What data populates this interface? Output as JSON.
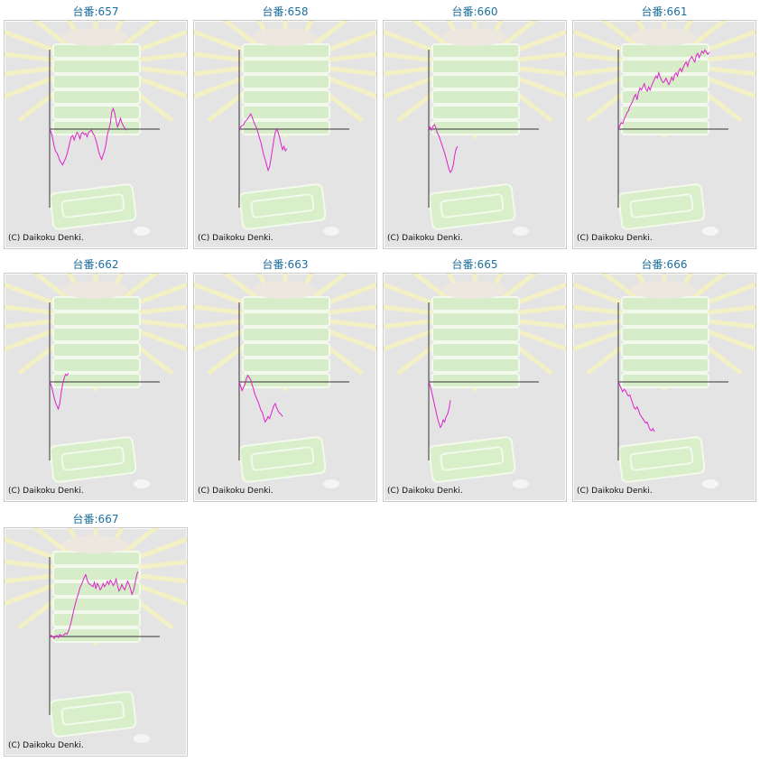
{
  "page": {
    "title_prefix": "台番:",
    "copyright": "(C) Daikoku Denki."
  },
  "colors": {
    "line": "#dd22cc",
    "title": "#1d6fa0",
    "panel_bg": "#e4e4e4",
    "axis": "#333333"
  },
  "chart_data": [
    {
      "type": "line",
      "title": "台番:657",
      "machine": "657",
      "y": [
        0,
        -3,
        -8,
        -15,
        -20,
        -22,
        -25,
        -29,
        -31,
        -33,
        -30,
        -27,
        -23,
        -18,
        -12,
        -7,
        -6,
        -10,
        -6,
        -3,
        -5,
        -9,
        -4,
        -3,
        -5,
        -4,
        -7,
        -3,
        -2,
        -1,
        -4,
        -6,
        -10,
        -15,
        -21,
        -25,
        -28,
        -24,
        -20,
        -14,
        -5,
        0,
        5,
        16,
        19,
        15,
        8,
        2,
        5,
        10,
        6,
        3,
        1,
        -1
      ]
    },
    {
      "type": "line",
      "title": "台番:658",
      "machine": "658",
      "y": [
        0,
        2,
        3,
        4,
        7,
        8,
        10,
        12,
        14,
        11,
        7,
        4,
        1,
        -3,
        -8,
        -12,
        -18,
        -24,
        -28,
        -33,
        -38,
        -35,
        -27,
        -19,
        -10,
        -3,
        0,
        -3,
        -8,
        -14,
        -19,
        -16,
        -20,
        -18
      ]
    },
    {
      "type": "line",
      "title": "台番:660",
      "machine": "660",
      "y": [
        0,
        2,
        -1,
        3,
        4,
        1,
        -4,
        -6,
        -10,
        -14,
        -18,
        -22,
        -27,
        -32,
        -37,
        -40,
        -38,
        -33,
        -24,
        -18,
        -16
      ]
    },
    {
      "type": "line",
      "title": "台番:661",
      "machine": "661",
      "y": [
        0,
        3,
        6,
        5,
        9,
        12,
        15,
        17,
        21,
        23,
        26,
        30,
        32,
        27,
        34,
        38,
        36,
        39,
        42,
        37,
        35,
        39,
        36,
        40,
        43,
        46,
        49,
        47,
        52,
        48,
        45,
        43,
        44,
        47,
        44,
        41,
        44,
        48,
        45,
        50,
        52,
        49,
        54,
        56,
        53,
        57,
        60,
        62,
        58,
        63,
        65,
        67,
        64,
        62,
        68,
        70,
        66,
        69,
        72,
        70,
        73,
        71,
        69,
        71
      ]
    },
    {
      "type": "line",
      "title": "台番:662",
      "machine": "662",
      "y": [
        0,
        -3,
        -8,
        -14,
        -19,
        -22,
        -25,
        -20,
        -10,
        -2,
        3,
        7,
        6,
        8
      ]
    },
    {
      "type": "line",
      "title": "台番:663",
      "machine": "663",
      "y": [
        0,
        -4,
        -8,
        -5,
        -2,
        3,
        6,
        4,
        2,
        -3,
        -7,
        -12,
        -15,
        -18,
        -22,
        -26,
        -28,
        -33,
        -37,
        -35,
        -32,
        -34,
        -30,
        -26,
        -22,
        -20,
        -24,
        -27,
        -29,
        -30,
        -32
      ]
    },
    {
      "type": "line",
      "title": "台番:665",
      "machine": "665",
      "y": [
        0,
        -4,
        -9,
        -15,
        -21,
        -27,
        -33,
        -38,
        -42,
        -40,
        -35,
        -37,
        -32,
        -30,
        -25,
        -17
      ]
    },
    {
      "type": "line",
      "title": "台番:666",
      "machine": "666",
      "y": [
        0,
        -3,
        -6,
        -9,
        -7,
        -8,
        -11,
        -13,
        -12,
        -16,
        -20,
        -24,
        -25,
        -23,
        -26,
        -30,
        -32,
        -34,
        -36,
        -38,
        -37,
        -41,
        -44,
        -45,
        -43,
        -46
      ]
    },
    {
      "type": "line",
      "title": "台番:667",
      "machine": "667",
      "y": [
        0,
        1,
        0,
        -2,
        0,
        1,
        -1,
        2,
        1,
        0,
        2,
        3,
        2,
        5,
        9,
        14,
        20,
        26,
        31,
        36,
        40,
        45,
        48,
        51,
        55,
        57,
        52,
        49,
        48,
        47,
        46,
        50,
        44,
        49,
        47,
        43,
        45,
        49,
        46,
        48,
        51,
        48,
        52,
        50,
        47,
        49,
        53,
        47,
        42,
        44,
        48,
        45,
        43,
        47,
        51,
        48,
        44,
        39,
        42,
        48,
        55,
        60
      ]
    }
  ]
}
